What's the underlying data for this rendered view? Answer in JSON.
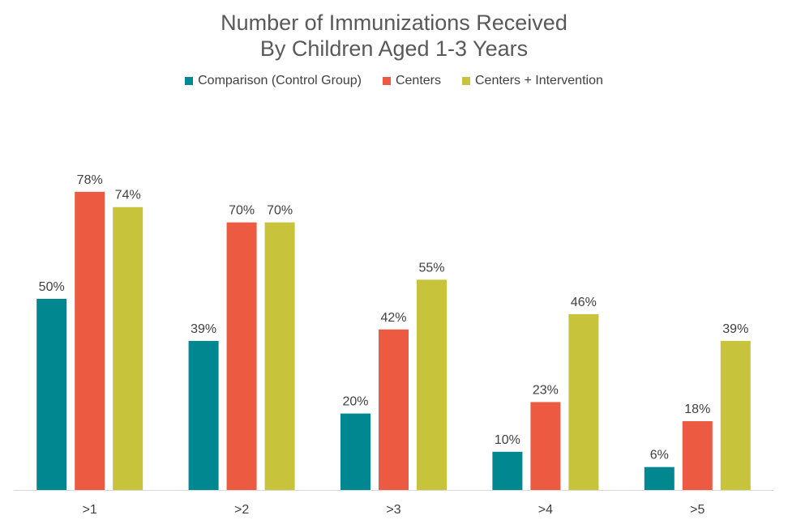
{
  "chart_data": {
    "type": "bar",
    "title_lines": [
      "Number of Immunizations Received",
      "By Children Aged 1-3 Years"
    ],
    "categories": [
      ">1",
      ">2",
      ">3",
      ">4",
      ">5"
    ],
    "series": [
      {
        "name": "Comparison (Control Group)",
        "color": "#00878f",
        "values": [
          50,
          39,
          20,
          10,
          6
        ],
        "labels": [
          "50%",
          "39%",
          "20%",
          "10%",
          "6%"
        ]
      },
      {
        "name": "Centers",
        "color": "#ec5a41",
        "values": [
          78,
          70,
          42,
          23,
          18
        ],
        "labels": [
          "78%",
          "70%",
          "42%",
          "23%",
          "18%"
        ]
      },
      {
        "name": "Centers + Intervention",
        "color": "#c7c33a",
        "values": [
          74,
          70,
          55,
          46,
          39
        ],
        "labels": [
          "74%",
          "70%",
          "55%",
          "46%",
          "39%"
        ]
      }
    ],
    "value_unit": "%",
    "legend_position": "top",
    "grid": false
  }
}
